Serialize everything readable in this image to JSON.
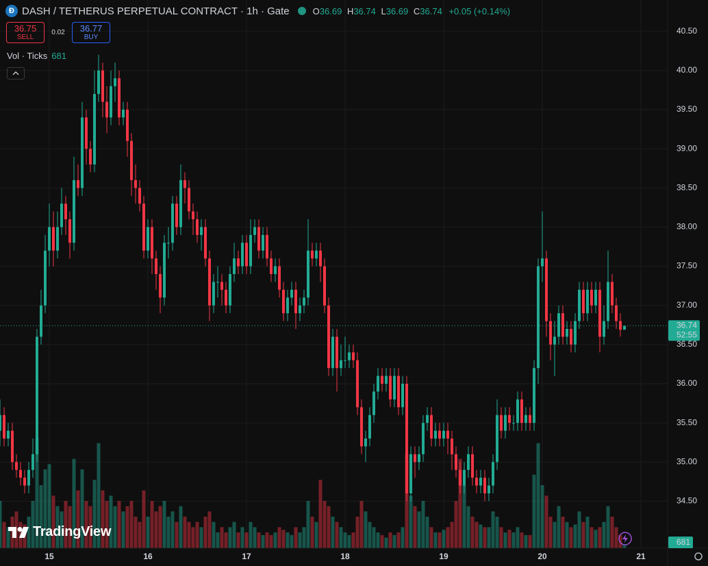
{
  "header": {
    "symbol_title": "DASH / TETHERUS PERPETUAL CONTRACT · 1h · Gate",
    "ohlc": [
      {
        "label": "O",
        "value": "36.69"
      },
      {
        "label": "H",
        "value": "36.74"
      },
      {
        "label": "L",
        "value": "36.69"
      },
      {
        "label": "C",
        "value": "36.74"
      }
    ],
    "change": "+0.05 (+0.14%)"
  },
  "trade": {
    "sell_price": "36.75",
    "sell_label": "SELL",
    "spread": "0.02",
    "buy_price": "36.77",
    "buy_label": "BUY"
  },
  "indicator": {
    "name": "Vol · Ticks",
    "value": "681"
  },
  "branding": "TradingView",
  "chart_data": {
    "type": "candlestick",
    "x_labels": [
      "15",
      "16",
      "17",
      "18",
      "19",
      "20",
      "21"
    ],
    "open": [
      35.4,
      35.6,
      35.3,
      35.4,
      35.0,
      34.9,
      34.8,
      34.7,
      34.9,
      35.1,
      36.6,
      37.0,
      37.7,
      38.0,
      37.7,
      38.0,
      38.3,
      38.1,
      37.8,
      38.6,
      38.5,
      39.4,
      39.0,
      38.8,
      39.7,
      40.0,
      39.6,
      39.4,
      39.8,
      39.9,
      39.4,
      39.5,
      39.1,
      38.6,
      38.5,
      38.3,
      37.7,
      38.0,
      37.6,
      37.4,
      37.1,
      37.8,
      37.8,
      38.3,
      38.0,
      38.6,
      38.5,
      38.2,
      38.1,
      37.9,
      38.0,
      37.6,
      37.0,
      37.3,
      37.3,
      37.2,
      37.0,
      37.4,
      37.6,
      37.5,
      37.8,
      37.5,
      37.9,
      38.0,
      37.7,
      37.9,
      37.6,
      37.4,
      37.5,
      37.2,
      36.9,
      37.1,
      37.2,
      36.9,
      37.0,
      37.1,
      37.7,
      37.6,
      37.7,
      37.5,
      37.0,
      36.2,
      36.6,
      36.2,
      36.3,
      36.3,
      36.4,
      36.3,
      35.7,
      35.2,
      35.3,
      35.6,
      35.9,
      36.1,
      36.0,
      36.1,
      35.8,
      36.1,
      35.7,
      36.0,
      34.6,
      35.1,
      35.0,
      35.1,
      35.5,
      35.6,
      35.3,
      35.4,
      35.3,
      35.4,
      35.3,
      35.1,
      34.9,
      34.7,
      34.9,
      35.1,
      34.8,
      34.7,
      34.8,
      34.6,
      34.7,
      35.0,
      35.6,
      35.4,
      35.6,
      35.5,
      35.5,
      35.8,
      35.5,
      35.6,
      35.5,
      36.2,
      37.5,
      37.6,
      36.8,
      36.5,
      36.6,
      36.9,
      36.6,
      36.7,
      36.5,
      36.8,
      37.2,
      36.9,
      37.2,
      37.0,
      37.2,
      36.6,
      36.8,
      37.3,
      37.0,
      36.8,
      36.69
    ],
    "high": [
      35.8,
      35.7,
      35.5,
      35.5,
      35.1,
      35.0,
      34.9,
      35.0,
      35.3,
      36.7,
      37.2,
      37.9,
      38.3,
      38.2,
      38.2,
      38.5,
      38.4,
      38.2,
      38.9,
      38.8,
      39.6,
      39.5,
      39.1,
      40.0,
      40.2,
      40.1,
      39.8,
      40.0,
      40.1,
      40.0,
      39.6,
      39.6,
      39.2,
      38.8,
      38.6,
      38.4,
      38.1,
      38.1,
      37.7,
      37.5,
      37.9,
      38.0,
      38.4,
      38.4,
      38.8,
      38.7,
      38.6,
      38.3,
      38.2,
      38.1,
      38.1,
      37.7,
      37.4,
      37.5,
      37.4,
      37.3,
      37.5,
      37.8,
      37.7,
      37.9,
      37.9,
      38.1,
      38.1,
      38.1,
      38.0,
      38.0,
      37.7,
      37.6,
      37.6,
      37.3,
      37.2,
      37.3,
      37.3,
      37.1,
      37.2,
      38.1,
      37.8,
      37.8,
      37.8,
      37.6,
      37.1,
      36.7,
      36.7,
      36.5,
      36.6,
      36.5,
      36.5,
      36.4,
      35.8,
      35.4,
      35.7,
      36.0,
      36.2,
      36.2,
      36.2,
      36.2,
      36.2,
      36.2,
      36.1,
      36.1,
      35.2,
      35.2,
      35.2,
      35.6,
      35.7,
      35.7,
      35.5,
      35.5,
      35.5,
      35.5,
      35.4,
      35.2,
      35.0,
      35.0,
      35.2,
      35.2,
      34.9,
      34.9,
      34.9,
      34.8,
      35.1,
      35.8,
      35.7,
      35.7,
      35.7,
      35.6,
      35.9,
      35.9,
      35.7,
      35.7,
      36.3,
      37.6,
      38.2,
      37.7,
      36.9,
      36.8,
      37.0,
      37.0,
      36.8,
      36.8,
      36.9,
      37.3,
      37.3,
      37.3,
      37.3,
      37.3,
      37.3,
      37.0,
      37.7,
      37.4,
      37.1,
      36.9,
      36.74
    ],
    "low": [
      35.2,
      35.2,
      35.2,
      34.9,
      34.8,
      34.7,
      34.6,
      34.6,
      34.8,
      35.0,
      36.5,
      36.9,
      37.5,
      37.5,
      37.6,
      37.9,
      37.9,
      37.6,
      37.7,
      38.4,
      38.4,
      38.8,
      38.7,
      38.7,
      39.6,
      39.4,
      39.2,
      39.3,
      39.6,
      39.3,
      39.3,
      38.9,
      38.4,
      38.3,
      38.2,
      37.6,
      37.6,
      37.4,
      37.2,
      36.9,
      37.0,
      37.6,
      37.7,
      37.9,
      37.9,
      38.3,
      38.1,
      37.9,
      37.8,
      37.7,
      37.5,
      36.8,
      36.9,
      37.1,
      37.0,
      36.9,
      36.9,
      37.3,
      37.4,
      37.4,
      37.4,
      37.4,
      37.8,
      37.6,
      37.6,
      37.5,
      37.3,
      37.3,
      37.1,
      36.8,
      36.8,
      37.0,
      36.7,
      36.8,
      36.9,
      37.0,
      37.5,
      37.5,
      37.3,
      36.9,
      36.1,
      36.1,
      35.9,
      36.1,
      36.2,
      36.2,
      36.2,
      35.6,
      35.1,
      35.0,
      35.2,
      35.5,
      35.8,
      35.9,
      35.9,
      35.7,
      35.7,
      35.6,
      35.6,
      34.5,
      34.5,
      34.8,
      34.9,
      35.0,
      35.4,
      35.2,
      35.2,
      35.2,
      35.2,
      35.1,
      34.9,
      34.8,
      34.6,
      34.6,
      34.8,
      34.7,
      34.6,
      34.6,
      34.5,
      34.5,
      34.6,
      34.9,
      35.3,
      35.3,
      35.4,
      35.4,
      35.4,
      35.4,
      35.4,
      35.4,
      35.4,
      36.0,
      37.3,
      36.6,
      36.3,
      36.1,
      36.5,
      36.5,
      36.5,
      36.4,
      36.4,
      36.7,
      36.8,
      36.8,
      36.9,
      36.9,
      36.4,
      36.5,
      36.7,
      36.9,
      36.7,
      36.6,
      36.69
    ],
    "close": [
      35.6,
      35.3,
      35.4,
      35.0,
      34.9,
      34.8,
      34.7,
      34.9,
      35.1,
      36.6,
      37.0,
      37.7,
      38.0,
      37.7,
      38.0,
      38.3,
      38.1,
      37.8,
      38.6,
      38.5,
      39.4,
      39.0,
      38.8,
      39.7,
      40.0,
      39.6,
      39.4,
      39.8,
      39.9,
      39.4,
      39.5,
      39.1,
      38.6,
      38.5,
      38.3,
      37.7,
      38.0,
      37.6,
      37.4,
      37.1,
      37.8,
      37.8,
      38.3,
      38.0,
      38.6,
      38.5,
      38.2,
      38.1,
      37.9,
      38.0,
      37.6,
      37.0,
      37.3,
      37.3,
      37.2,
      37.0,
      37.4,
      37.6,
      37.5,
      37.8,
      37.5,
      37.9,
      38.0,
      37.7,
      37.9,
      37.6,
      37.4,
      37.5,
      37.2,
      36.9,
      37.1,
      37.2,
      36.9,
      37.0,
      37.1,
      37.7,
      37.6,
      37.7,
      37.5,
      37.0,
      36.2,
      36.6,
      36.2,
      36.3,
      36.3,
      36.4,
      36.3,
      35.7,
      35.2,
      35.3,
      35.6,
      35.9,
      36.1,
      36.0,
      36.1,
      35.8,
      36.1,
      35.7,
      36.0,
      34.6,
      35.1,
      35.0,
      35.1,
      35.5,
      35.6,
      35.3,
      35.4,
      35.3,
      35.4,
      35.3,
      35.1,
      34.9,
      34.7,
      34.9,
      35.1,
      34.8,
      34.7,
      34.8,
      34.6,
      34.7,
      35.0,
      35.6,
      35.4,
      35.6,
      35.5,
      35.5,
      35.8,
      35.5,
      35.6,
      35.5,
      36.2,
      37.5,
      37.6,
      36.8,
      36.5,
      36.6,
      36.9,
      36.6,
      36.7,
      36.5,
      36.8,
      37.2,
      36.9,
      37.2,
      37.0,
      37.2,
      36.6,
      36.8,
      37.3,
      37.0,
      36.8,
      36.69,
      36.74
    ],
    "volume": [
      9000,
      5000,
      4000,
      6000,
      7000,
      5000,
      4500,
      6000,
      9000,
      21000,
      12000,
      15000,
      16000,
      10000,
      8000,
      7000,
      9000,
      8000,
      17000,
      11000,
      15000,
      9000,
      8000,
      13000,
      20000,
      11000,
      9000,
      10000,
      8000,
      9000,
      7000,
      8000,
      9000,
      6000,
      5000,
      11000,
      6000,
      9000,
      7000,
      8000,
      9000,
      6000,
      7000,
      5000,
      8000,
      6000,
      5000,
      4000,
      5000,
      4000,
      6000,
      7000,
      5000,
      3000,
      4000,
      3000,
      4000,
      5000,
      3000,
      4000,
      3000,
      5000,
      4000,
      3000,
      2500,
      3000,
      2500,
      3000,
      4000,
      3500,
      3000,
      2500,
      4000,
      3000,
      4000,
      9000,
      6000,
      5000,
      13000,
      9000,
      8000,
      6000,
      5000,
      4000,
      3000,
      2500,
      3000,
      6000,
      9000,
      7000,
      5000,
      4000,
      3000,
      2500,
      2000,
      3000,
      2500,
      3000,
      4000,
      18000,
      10000,
      8000,
      7000,
      9000,
      6000,
      4000,
      3000,
      3000,
      3500,
      4000,
      5000,
      9000,
      17000,
      12000,
      8000,
      6000,
      5000,
      4500,
      4000,
      4000,
      7000,
      6000,
      4000,
      3000,
      3500,
      3000,
      4000,
      3000,
      2500,
      2500,
      14000,
      20000,
      12000,
      10000,
      6000,
      5000,
      8000,
      6000,
      5000,
      4000,
      4500,
      7000,
      5000,
      6000,
      4000,
      3500,
      4000,
      5000,
      8000,
      6000,
      4000,
      2500,
      681
    ],
    "ylim": [
      33.9,
      40.9
    ],
    "yticks": [
      {
        "value": 34.5,
        "label": "34.50"
      },
      {
        "value": 35,
        "label": "35.00"
      },
      {
        "value": 35.5,
        "label": "35.50"
      },
      {
        "value": 36,
        "label": "36.00"
      },
      {
        "value": 36.5,
        "label": "36.50"
      },
      {
        "value": 37,
        "label": "37.00"
      },
      {
        "value": 37.5,
        "label": "37.50"
      },
      {
        "value": 38,
        "label": "38.00"
      },
      {
        "value": 38.5,
        "label": "38.50"
      },
      {
        "value": 39,
        "label": "39.00"
      },
      {
        "value": 39.5,
        "label": "39.50"
      },
      {
        "value": 40,
        "label": "40.00"
      },
      {
        "value": 40.5,
        "label": "40.50"
      }
    ],
    "volume_lim": [
      0,
      30000
    ],
    "up_color": "#22ab94",
    "down_color": "#f23645",
    "grid": true,
    "countdown": "52:55"
  }
}
